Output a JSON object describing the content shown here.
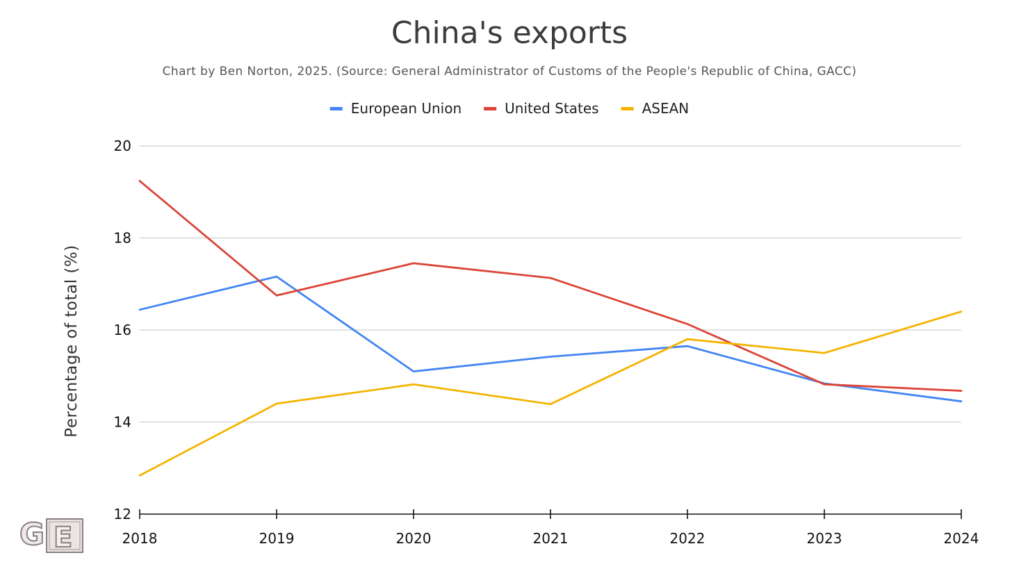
{
  "chart_data": {
    "type": "line",
    "title": "China's exports",
    "subtitle": "Chart by Ben Norton, 2025. (Source: General Administrator of Customs of the People's Republic of China, GACC)",
    "xlabel": "",
    "ylabel": "Percentage of total (%)",
    "x": [
      "2018",
      "2019",
      "2020",
      "2021",
      "2022",
      "2023",
      "2024"
    ],
    "ylim": [
      12,
      20
    ],
    "yticks": [
      12,
      14,
      16,
      18,
      20
    ],
    "grid": true,
    "legend_position": "top-center",
    "series": [
      {
        "name": "European Union",
        "color": "#4285f4",
        "values": [
          16.44,
          17.16,
          15.1,
          15.42,
          15.65,
          14.84,
          14.45
        ]
      },
      {
        "name": "United States",
        "color": "#db4437",
        "values": [
          19.24,
          16.75,
          17.45,
          17.13,
          16.13,
          14.82,
          14.68
        ]
      },
      {
        "name": "ASEAN",
        "color": "#f4b400",
        "values": [
          12.84,
          14.4,
          14.82,
          14.39,
          15.8,
          15.5,
          16.4
        ]
      }
    ]
  },
  "logo": {
    "text": "GE",
    "icon": "ge-logo-icon"
  }
}
